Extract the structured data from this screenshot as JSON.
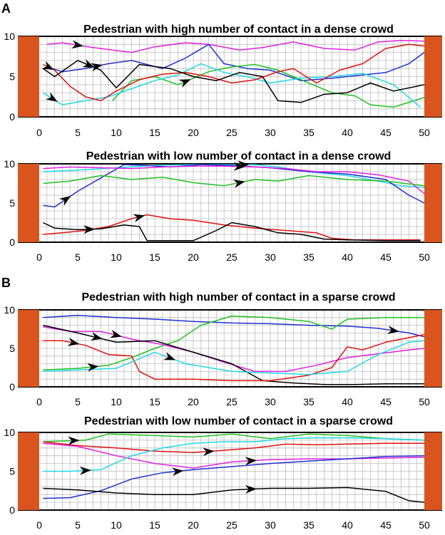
{
  "figure": {
    "panels": [
      {
        "letter": "A"
      },
      {
        "letter": "B"
      }
    ]
  },
  "colors": {
    "wall": "#d9541e",
    "grid": "#bdbdbd",
    "axis": "#000000",
    "arrow": "#000000"
  },
  "chart_data": [
    {
      "type": "line",
      "panel": "A",
      "title": "Pedestrian with high number of contact in a dense crowd",
      "xlabel": "",
      "ylabel": "",
      "xlim": [
        0,
        50
      ],
      "ylim": [
        0,
        10
      ],
      "xticks": [
        0,
        5,
        10,
        15,
        20,
        25,
        30,
        35,
        40,
        45,
        50
      ],
      "yticks": [
        0,
        5,
        10
      ],
      "grid": true,
      "series": [
        {
          "name": "magenta",
          "color": "#e020e0",
          "arrow_index": 1,
          "x": [
            1,
            3,
            7,
            12,
            15,
            19,
            22,
            26,
            29,
            33,
            37,
            41,
            44,
            47,
            50
          ],
          "y": [
            9.0,
            9.2,
            8.6,
            8.0,
            8.7,
            9.2,
            9.0,
            8.3,
            8.6,
            9.3,
            8.5,
            8.3,
            9.3,
            9.5,
            9.4
          ]
        },
        {
          "name": "blue",
          "color": "#2030d0",
          "arrow_index": 2,
          "x": [
            1,
            3,
            6,
            9,
            12,
            16,
            19,
            22,
            24,
            27,
            30,
            34,
            38,
            42,
            45,
            48,
            50
          ],
          "y": [
            6.2,
            5.6,
            6.0,
            6.6,
            7.0,
            6.0,
            7.3,
            9.0,
            6.6,
            6.0,
            5.8,
            4.5,
            4.8,
            5.2,
            5.5,
            6.6,
            8.0
          ]
        },
        {
          "name": "green",
          "color": "#20c020",
          "arrow_index": 3,
          "x": [
            9.5,
            12,
            15,
            18,
            20,
            22,
            25,
            28,
            31,
            34,
            38,
            41,
            43,
            46,
            50
          ],
          "y": [
            2.0,
            4.5,
            5.0,
            4.0,
            4.8,
            5.6,
            6.2,
            6.5,
            5.8,
            4.6,
            3.0,
            2.6,
            1.5,
            1.2,
            2.4
          ]
        },
        {
          "name": "cyan",
          "color": "#20d8e8",
          "arrow_index": 0,
          "x": [
            0.5,
            3,
            6,
            9,
            12,
            15,
            18,
            21,
            24,
            27,
            30,
            34,
            38,
            42,
            46,
            49.5
          ],
          "y": [
            3.0,
            1.5,
            2.0,
            2.5,
            3.5,
            4.5,
            5.2,
            6.6,
            5.5,
            5.0,
            4.2,
            4.8,
            5.0,
            5.4,
            4.0,
            1.2
          ]
        },
        {
          "name": "red",
          "color": "#e01010",
          "arrow_index": 0,
          "x": [
            0.5,
            2,
            4,
            6,
            8,
            10,
            13,
            16,
            19,
            22,
            25,
            28,
            31,
            33,
            36,
            39,
            42,
            45,
            48,
            50
          ],
          "y": [
            6.5,
            5.8,
            3.8,
            2.5,
            2.0,
            3.2,
            4.6,
            5.3,
            5.5,
            5.0,
            4.2,
            4.6,
            5.6,
            6.0,
            4.2,
            5.8,
            6.6,
            8.5,
            9.0,
            8.8
          ]
        },
        {
          "name": "black",
          "color": "#000000",
          "arrow_index": 2,
          "x": [
            0.5,
            2,
            5,
            8,
            10,
            13,
            17,
            20,
            23,
            26,
            29,
            31,
            34,
            37,
            40,
            43,
            46,
            49,
            50
          ],
          "y": [
            6.0,
            5.0,
            7.0,
            5.8,
            3.6,
            6.5,
            6.0,
            5.0,
            4.5,
            5.5,
            5.0,
            2.0,
            1.8,
            2.8,
            3.0,
            4.2,
            3.2,
            3.8,
            4.0
          ]
        }
      ]
    },
    {
      "type": "line",
      "panel": "A",
      "title": "Pedestrian with low number of contact in a dense crowd",
      "xlabel": "",
      "ylabel": "",
      "xlim": [
        0,
        50
      ],
      "ylim": [
        0,
        10
      ],
      "xticks": [
        0,
        5,
        10,
        15,
        20,
        25,
        30,
        35,
        40,
        45,
        50
      ],
      "yticks": [
        0,
        5,
        10
      ],
      "grid": true,
      "series": [
        {
          "name": "cyan",
          "color": "#20d8e8",
          "arrow_index": 5,
          "x": [
            0.5,
            5,
            10,
            15,
            20,
            25,
            28,
            31,
            35,
            40,
            44,
            47,
            50
          ],
          "y": [
            9.0,
            9.2,
            9.5,
            9.8,
            9.9,
            9.9,
            9.9,
            9.6,
            9.0,
            8.5,
            7.8,
            7.2,
            7.0
          ]
        },
        {
          "name": "blue",
          "color": "#2030d0",
          "arrow_index": 1,
          "x": [
            0.5,
            2,
            5,
            8,
            11,
            14,
            17,
            21,
            25,
            30,
            35,
            40,
            45,
            48,
            50
          ],
          "y": [
            4.7,
            4.5,
            6.5,
            8.2,
            9.9,
            9.8,
            9.6,
            9.9,
            9.8,
            9.5,
            9.0,
            8.7,
            8.0,
            6.0,
            5.0
          ]
        },
        {
          "name": "magenta",
          "color": "#e020e0",
          "arrow_index": 6,
          "x": [
            0.5,
            4,
            8,
            12,
            16,
            20,
            24,
            28,
            32,
            36,
            40,
            44,
            48,
            50
          ],
          "y": [
            9.4,
            9.6,
            9.5,
            9.4,
            9.6,
            9.7,
            9.7,
            9.6,
            9.4,
            9.0,
            9.0,
            8.6,
            7.8,
            6.2
          ]
        },
        {
          "name": "green",
          "color": "#20c020",
          "arrow_index": 6,
          "x": [
            0.5,
            4,
            8,
            12,
            16,
            20,
            24,
            28,
            31,
            35,
            40,
            45,
            50
          ],
          "y": [
            7.5,
            7.8,
            8.5,
            8.0,
            8.3,
            7.6,
            7.2,
            8.0,
            7.8,
            8.5,
            8.0,
            7.8,
            7.2
          ]
        },
        {
          "name": "red",
          "color": "#e01010",
          "arrow_index": 4,
          "x": [
            0.5,
            3,
            6,
            9,
            12,
            14,
            17,
            20,
            24,
            28,
            32,
            36,
            38,
            41,
            45,
            49.5
          ],
          "y": [
            1.0,
            1.2,
            1.5,
            2.0,
            3.0,
            3.5,
            3.0,
            2.8,
            2.2,
            1.8,
            1.5,
            1.2,
            0.5,
            0.3,
            0.3,
            0.3
          ]
        },
        {
          "name": "black",
          "color": "#000000",
          "arrow_index": 2,
          "x": [
            0.5,
            2,
            5,
            8,
            11,
            13,
            14,
            20,
            23,
            25,
            28,
            31,
            34,
            37,
            40,
            45,
            49.5
          ],
          "y": [
            2.5,
            1.8,
            1.6,
            1.7,
            2.2,
            2.0,
            0.2,
            0.2,
            1.5,
            2.5,
            2.0,
            1.2,
            1.0,
            0.4,
            0.3,
            0.2,
            0.2
          ]
        }
      ]
    },
    {
      "type": "line",
      "panel": "B",
      "title": "Pedestrian with high number of contact in a sparse crowd",
      "xlabel": "",
      "ylabel": "",
      "xlim": [
        0,
        50
      ],
      "ylim": [
        0,
        10
      ],
      "xticks": [
        0,
        5,
        10,
        15,
        20,
        25,
        30,
        35,
        40,
        45,
        50
      ],
      "yticks": [
        0,
        5,
        10
      ],
      "grid": true,
      "series": [
        {
          "name": "blue",
          "color": "#2030d0",
          "arrow_index": 9,
          "x": [
            0.5,
            5,
            10,
            15,
            20,
            25,
            30,
            35,
            40,
            44,
            48,
            50
          ],
          "y": [
            9.0,
            9.3,
            9.0,
            8.8,
            8.5,
            8.3,
            8.2,
            8.0,
            7.9,
            7.6,
            7.0,
            6.5
          ]
        },
        {
          "name": "green",
          "color": "#20c020",
          "arrow_index": 1,
          "x": [
            0.5,
            5,
            9,
            12,
            15,
            18,
            21,
            25,
            30,
            35,
            38,
            40,
            45,
            50
          ],
          "y": [
            2.2,
            2.4,
            2.8,
            3.8,
            5.0,
            6.0,
            8.0,
            9.2,
            9.0,
            8.5,
            7.5,
            8.8,
            9.0,
            9.0
          ]
        },
        {
          "name": "magenta",
          "color": "#e020e0",
          "arrow_index": 2,
          "x": [
            0.5,
            4,
            8,
            12,
            16,
            20,
            24,
            28,
            32,
            36,
            40,
            44,
            48,
            50
          ],
          "y": [
            7.8,
            7.2,
            7.2,
            6.2,
            5.5,
            4.5,
            3.2,
            2.0,
            2.0,
            2.8,
            3.8,
            4.3,
            4.8,
            5.0
          ]
        },
        {
          "name": "black",
          "color": "#000000",
          "arrow_index": 1,
          "x": [
            0.5,
            5,
            10,
            15,
            20,
            25,
            29,
            33,
            37,
            41,
            45,
            50
          ],
          "y": [
            8.0,
            7.0,
            5.8,
            6.0,
            4.5,
            3.0,
            0.8,
            0.5,
            0.3,
            0.3,
            0.4,
            0.4
          ]
        },
        {
          "name": "red",
          "color": "#e01010",
          "arrow_index": 1,
          "x": [
            0.5,
            3,
            6,
            9,
            12,
            13,
            15,
            20,
            25,
            30,
            35,
            38,
            40,
            42,
            45,
            50
          ],
          "y": [
            6.0,
            6.0,
            5.4,
            4.2,
            4.0,
            2.0,
            1.0,
            1.0,
            0.8,
            0.8,
            1.5,
            2.5,
            5.2,
            4.8,
            5.8,
            6.8
          ]
        },
        {
          "name": "cyan",
          "color": "#20d8e8",
          "arrow_index": 3,
          "x": [
            0.5,
            5,
            10,
            15,
            19,
            25,
            30,
            35,
            40,
            44,
            48,
            50
          ],
          "y": [
            2.0,
            2.2,
            2.4,
            4.5,
            3.0,
            2.0,
            1.8,
            1.6,
            2.0,
            4.2,
            5.8,
            6.0
          ]
        }
      ]
    },
    {
      "type": "line",
      "panel": "B",
      "title": "Pedestrian with low number of contact in a sparse crowd",
      "xlabel": "",
      "ylabel": "",
      "xlim": [
        0,
        50
      ],
      "ylim": [
        0,
        10
      ],
      "xticks": [
        0,
        5,
        10,
        15,
        20,
        25,
        30,
        35,
        40,
        45,
        50
      ],
      "yticks": [
        0,
        5,
        10
      ],
      "grid": true,
      "series": [
        {
          "name": "green",
          "color": "#20c020",
          "arrow_index": 1,
          "x": [
            0.5,
            3,
            6,
            9,
            15,
            20,
            25,
            30,
            35,
            40,
            45,
            50
          ],
          "y": [
            8.8,
            8.9,
            9.0,
            9.8,
            9.6,
            9.4,
            9.8,
            9.2,
            9.8,
            9.6,
            9.2,
            9.0
          ]
        },
        {
          "name": "red",
          "color": "#e01010",
          "arrow_index": 4,
          "x": [
            0.5,
            5,
            10,
            15,
            20,
            24,
            28,
            32,
            36,
            40,
            45,
            50
          ],
          "y": [
            8.8,
            8.3,
            8.0,
            7.6,
            7.4,
            7.7,
            8.0,
            8.5,
            8.4,
            8.5,
            8.6,
            8.6
          ]
        },
        {
          "name": "magenta",
          "color": "#e020e0",
          "arrow_index": 5,
          "x": [
            0.5,
            5,
            10,
            15,
            20,
            25,
            30,
            35,
            40,
            45,
            50
          ],
          "y": [
            8.6,
            8.2,
            7.0,
            6.0,
            5.4,
            6.2,
            6.5,
            6.6,
            6.6,
            6.7,
            6.8
          ]
        },
        {
          "name": "cyan",
          "color": "#20d8e8",
          "arrow_index": 1,
          "x": [
            0.5,
            4,
            8,
            12,
            16,
            20,
            24,
            28,
            32,
            36,
            40,
            45,
            50
          ],
          "y": [
            5.0,
            5.0,
            5.2,
            7.0,
            8.0,
            8.6,
            8.8,
            8.8,
            9.2,
            9.3,
            9.3,
            9.2,
            9.0
          ]
        },
        {
          "name": "blue",
          "color": "#2030d0",
          "arrow_index": 4,
          "x": [
            0.5,
            4,
            8,
            12,
            16,
            20,
            25,
            30,
            35,
            40,
            45,
            50
          ],
          "y": [
            1.5,
            1.6,
            2.5,
            4.0,
            4.8,
            5.2,
            5.6,
            6.0,
            6.3,
            6.6,
            6.9,
            7.0
          ]
        },
        {
          "name": "black",
          "color": "#000000",
          "arrow_index": 5,
          "x": [
            0.5,
            5,
            10,
            15,
            20,
            25,
            30,
            35,
            40,
            45,
            48,
            50
          ],
          "y": [
            2.8,
            2.6,
            2.2,
            2.0,
            2.0,
            2.6,
            2.8,
            2.8,
            2.9,
            2.4,
            1.2,
            1.0
          ]
        }
      ]
    }
  ]
}
